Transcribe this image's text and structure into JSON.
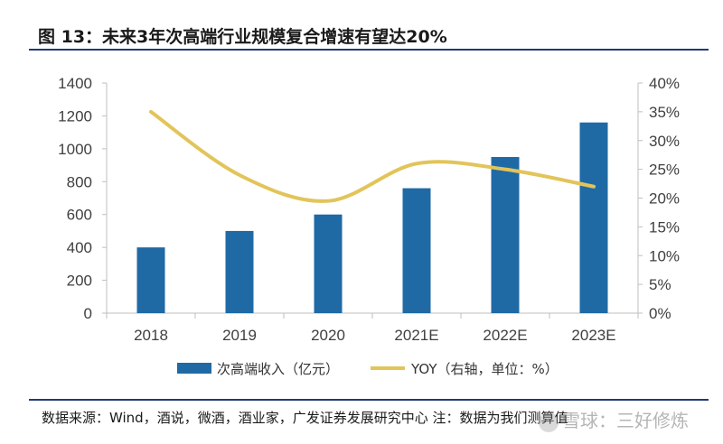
{
  "header": {
    "title": "图 13：未来3年次高端行业规模复合增速有望达20%"
  },
  "footer": {
    "source": "数据来源：Wind，酒说，微酒，酒业家，广发证券发展研究中心  注：数据为我们测算值",
    "watermark": "雪球：三好修炼"
  },
  "colors": {
    "bar": "#1f6aa5",
    "line": "#e2c45a",
    "axis": "#bfbfbf",
    "rule": "#1f3b73"
  },
  "chart_data": {
    "type": "bar",
    "title": "",
    "categories": [
      "2018",
      "2019",
      "2020",
      "2021E",
      "2022E",
      "2023E"
    ],
    "series": [
      {
        "name": "次高端收入（亿元）",
        "type": "bar",
        "axis": "left",
        "values": [
          400,
          500,
          600,
          760,
          950,
          1160
        ]
      },
      {
        "name": "YOY（右轴，单位：%）",
        "type": "line",
        "axis": "right",
        "values": [
          35,
          24,
          19.5,
          26,
          25,
          22
        ]
      }
    ],
    "left_axis": {
      "min": 0,
      "max": 1400,
      "step": 200,
      "ticks": [
        "0",
        "200",
        "400",
        "600",
        "800",
        "1000",
        "1200",
        "1400"
      ]
    },
    "right_axis": {
      "min": 0,
      "max": 40,
      "step": 5,
      "ticks": [
        "0%",
        "5%",
        "10%",
        "15%",
        "20%",
        "25%",
        "30%",
        "35%",
        "40%"
      ]
    },
    "legend_position": "bottom",
    "grid": false
  }
}
